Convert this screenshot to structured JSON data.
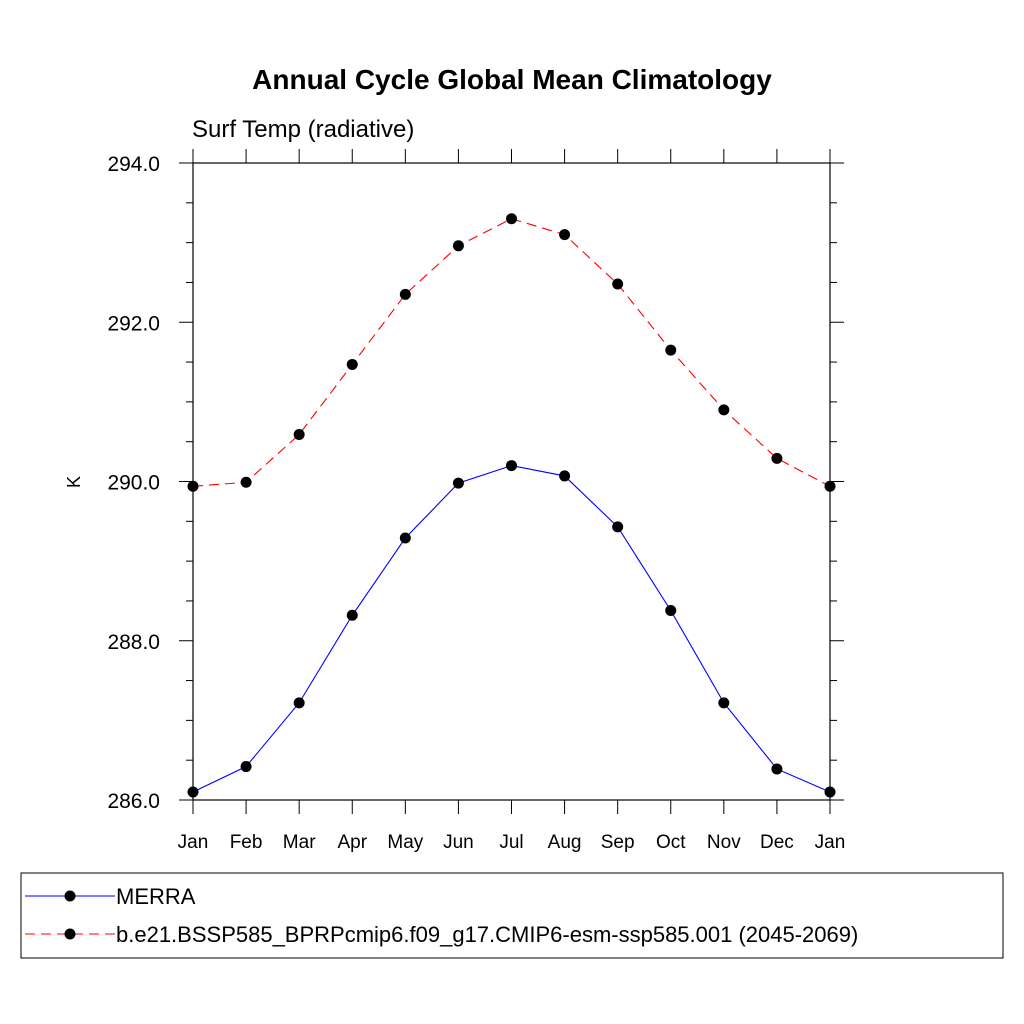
{
  "chart_data": {
    "type": "line",
    "title": "Annual Cycle Global Mean Climatology",
    "subtitle": "Surf Temp (radiative)",
    "ylabel": "K",
    "xlabel": "",
    "categories": [
      "Jan",
      "Feb",
      "Mar",
      "Apr",
      "May",
      "Jun",
      "Jul",
      "Aug",
      "Sep",
      "Oct",
      "Nov",
      "Dec",
      "Jan"
    ],
    "ylim": [
      286.0,
      294.0
    ],
    "yticks": [
      "286.0",
      "288.0",
      "290.0",
      "292.0",
      "294.0"
    ],
    "grid": false,
    "legend_placement": "bottom",
    "series": [
      {
        "name": "MERRA",
        "color": "#0000ff",
        "line_style": "solid",
        "marker": "filled-circle",
        "values": [
          286.1,
          286.42,
          287.22,
          288.32,
          289.29,
          289.98,
          290.2,
          290.07,
          289.43,
          288.38,
          287.22,
          286.39,
          286.1
        ]
      },
      {
        "name": "b.e21.BSSP585_BPRPcmip6.f09_g17.CMIP6-esm-ssp585.001 (2045-2069)",
        "color": "#ff0000",
        "line_style": "dashed",
        "marker": "filled-circle",
        "values": [
          289.94,
          289.99,
          290.59,
          291.47,
          292.35,
          292.96,
          293.3,
          293.1,
          292.48,
          291.65,
          290.9,
          290.29,
          289.94
        ]
      }
    ]
  }
}
